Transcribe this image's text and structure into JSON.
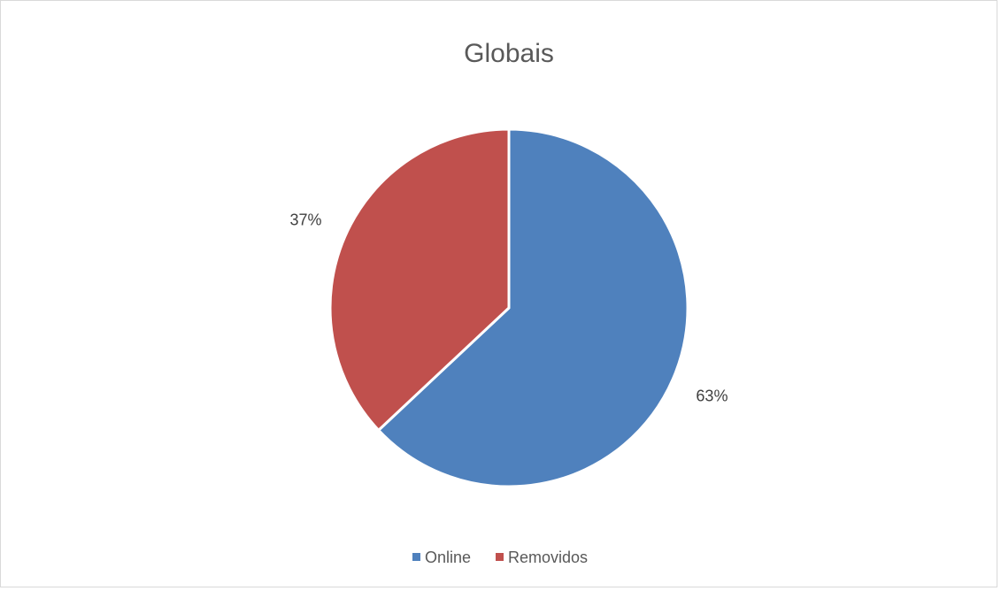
{
  "chart_data": {
    "type": "pie",
    "title": "Globais",
    "categories": [
      "Online",
      "Removidos"
    ],
    "values": [
      63,
      37
    ],
    "labels": [
      "63%",
      "37%"
    ],
    "colors": [
      "#4F81BD",
      "#C0504D"
    ],
    "legend_position": "bottom",
    "start_angle_deg": 0,
    "direction": "clockwise"
  }
}
